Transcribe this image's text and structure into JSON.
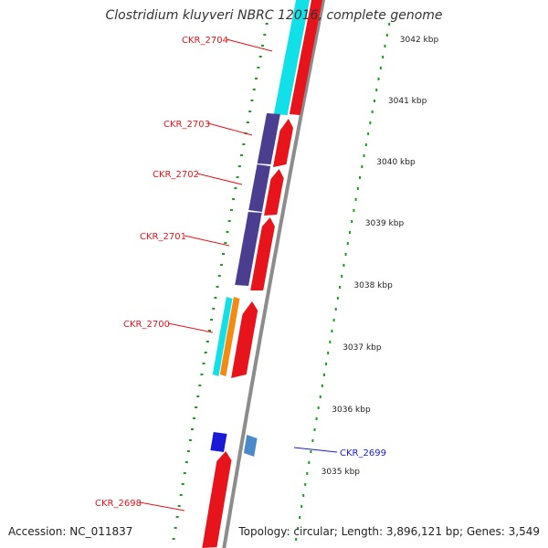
{
  "title": "Clostridium kluyveri NBRC 12016, complete genome",
  "accession": "Accession: NC_011837",
  "summary": "Topology: circular; Length: 3,896,121 bp; Genes: 3,549",
  "scale_labels": [
    "3042 kbp",
    "3041 kbp",
    "3040 kbp",
    "3039 kbp",
    "3038 kbp",
    "3037 kbp",
    "3036 kbp",
    "3035 kbp"
  ],
  "gene_labels": [
    {
      "text": "CKR_2704",
      "color": "#e8141b"
    },
    {
      "text": "CKR_2703",
      "color": "#e8141b"
    },
    {
      "text": "CKR_2702",
      "color": "#e8141b"
    },
    {
      "text": "CKR_2701",
      "color": "#e8141b"
    },
    {
      "text": "CKR_2700",
      "color": "#e8141b"
    },
    {
      "text": "CKR_2699",
      "color": "#1a1ad6"
    },
    {
      "text": "CKR_2698",
      "color": "#e8141b"
    }
  ],
  "colors": {
    "gene_red": "#e8141b",
    "cyan": "#12e0e8",
    "purple": "#4b3d8f",
    "orange": "#f38a12",
    "blue": "#1a1ad6",
    "steel_blue": "#4a8acb",
    "backbone": "#8c8c8c",
    "tick_green": "#1e9a1e"
  }
}
